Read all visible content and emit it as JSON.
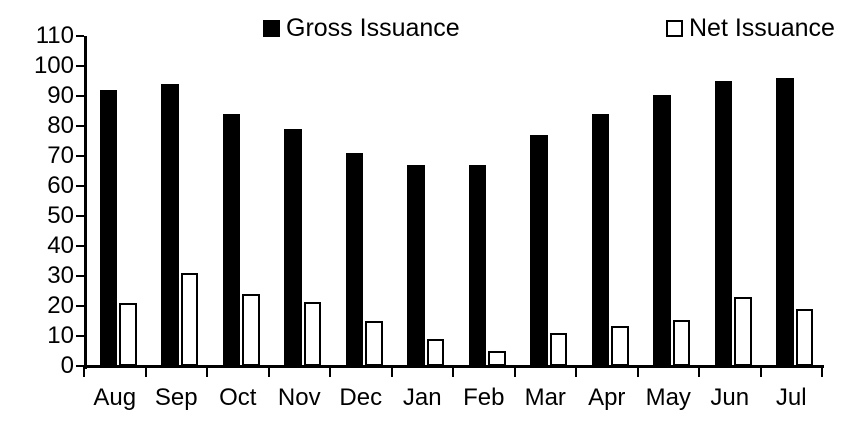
{
  "chart_data": {
    "type": "bar",
    "title": "",
    "xlabel": "",
    "ylabel": "",
    "categories": [
      "Aug",
      "Sep",
      "Oct",
      "Nov",
      "Dec",
      "Jan",
      "Feb",
      "Mar",
      "Apr",
      "May",
      "Jun",
      "Jul"
    ],
    "series": [
      {
        "name": "Gross Issuance",
        "fill": "#000000",
        "stroke": "#000000",
        "values": [
          92,
          94,
          84,
          79,
          71,
          67,
          67,
          77,
          84,
          90.5,
          95,
          96
        ]
      },
      {
        "name": "Net Issuance",
        "fill": "#ffffff",
        "stroke": "#000000",
        "values": [
          21,
          31,
          24,
          21.5,
          15,
          9,
          5,
          11,
          13.5,
          15.5,
          23,
          19
        ]
      }
    ],
    "ylim": [
      0,
      110
    ],
    "yticks": [
      0,
      10,
      20,
      30,
      40,
      50,
      60,
      70,
      80,
      90,
      100,
      110
    ],
    "grid": false,
    "legend_position": "top",
    "axis_color": "#000000",
    "background_color": "#ffffff"
  }
}
